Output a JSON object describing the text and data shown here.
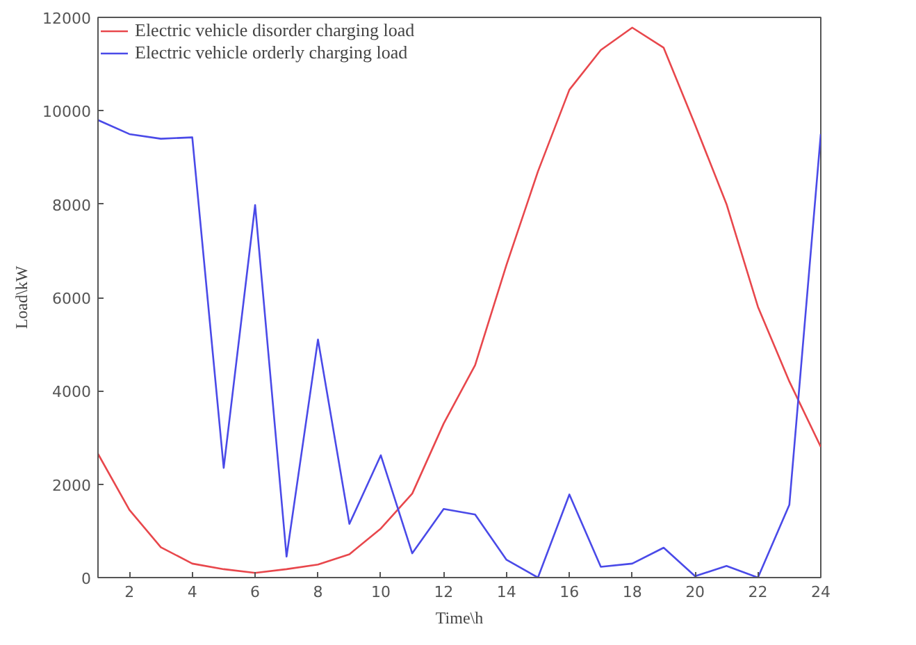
{
  "chart_data": {
    "type": "line",
    "xlabel": "Time\\h",
    "ylabel": "Load\\kW",
    "x": [
      1,
      2,
      3,
      4,
      5,
      6,
      7,
      8,
      9,
      10,
      11,
      12,
      13,
      14,
      15,
      16,
      17,
      18,
      19,
      20,
      21,
      22,
      23,
      24
    ],
    "series": [
      {
        "name": "Electric vehicle disorder charging load",
        "color": "#e8474c",
        "values": [
          2650,
          1450,
          650,
          300,
          180,
          100,
          180,
          280,
          500,
          1050,
          1800,
          3300,
          4550,
          6700,
          8700,
          10450,
          11300,
          11780,
          11350,
          9700,
          8000,
          5800,
          4200,
          2800
        ]
      },
      {
        "name": "Electric vehicle orderly charging load",
        "color": "#4a4ae8",
        "values": [
          9800,
          9500,
          9400,
          9430,
          2350,
          7980,
          450,
          5100,
          1150,
          2620,
          520,
          1470,
          1350,
          380,
          0,
          1780,
          230,
          300,
          640,
          30,
          250,
          0,
          1560,
          9500
        ]
      }
    ],
    "xlim": [
      1,
      24
    ],
    "xticks": [
      2,
      4,
      6,
      8,
      10,
      12,
      14,
      16,
      18,
      20,
      22,
      24
    ],
    "ylim": [
      0,
      12000
    ],
    "yticks": [
      0,
      2000,
      4000,
      6000,
      8000,
      10000,
      12000
    ],
    "grid": false,
    "legend": "top left",
    "marker": "none",
    "line_style": "solid"
  }
}
